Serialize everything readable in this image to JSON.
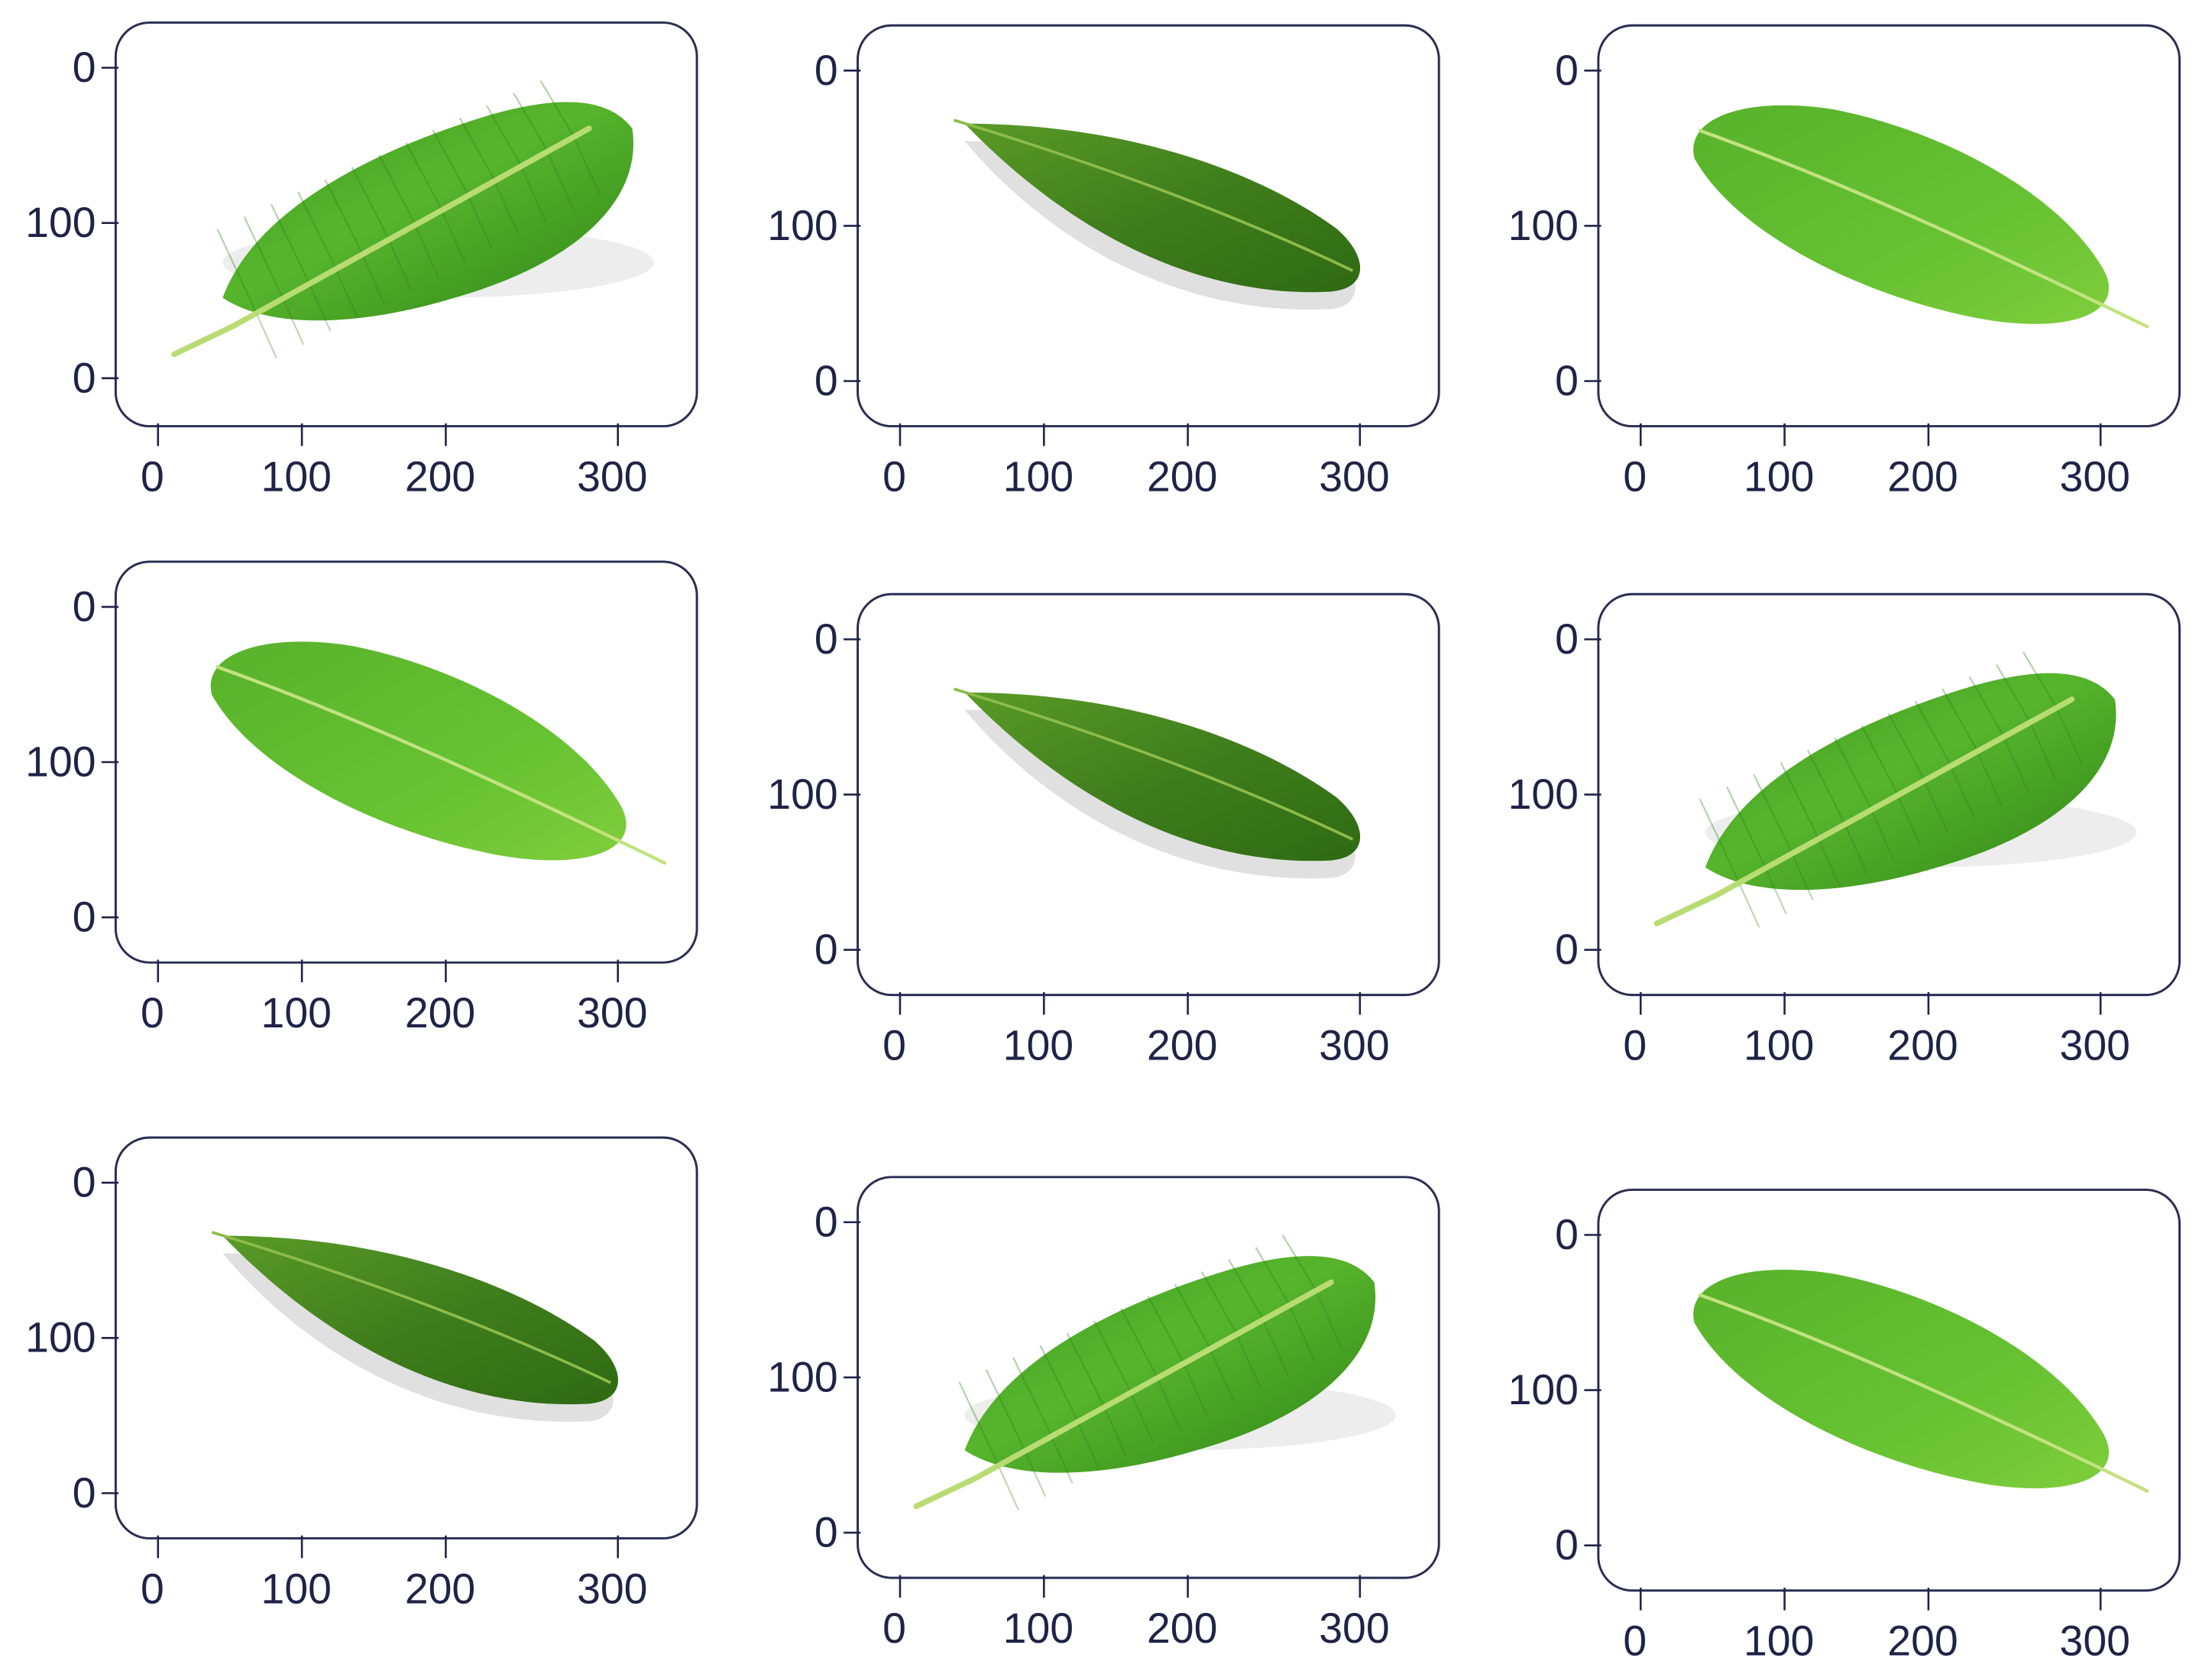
{
  "figure": {
    "ink_color": "#1f2347",
    "frame_color": "#2a2d52",
    "panels": [
      {
        "id": "r1c1",
        "leaf": "wide",
        "y_ticks": [
          "0",
          "100",
          "0"
        ],
        "x_ticks": [
          "0",
          "100",
          "200",
          "300"
        ]
      },
      {
        "id": "r1c2",
        "leaf": "dark",
        "y_ticks": [
          "0",
          "100",
          "0"
        ],
        "x_ticks": [
          "0",
          "100",
          "200",
          "300"
        ]
      },
      {
        "id": "r1c3",
        "leaf": "bright",
        "y_ticks": [
          "0",
          "100",
          "0"
        ],
        "x_ticks": [
          "0",
          "100",
          "200",
          "300"
        ]
      },
      {
        "id": "r2c1",
        "leaf": "bright",
        "y_ticks": [
          "0",
          "100",
          "0"
        ],
        "x_ticks": [
          "0",
          "100",
          "200",
          "300"
        ]
      },
      {
        "id": "r2c2",
        "leaf": "dark",
        "y_ticks": [
          "0",
          "100",
          "0"
        ],
        "x_ticks": [
          "0",
          "100",
          "200",
          "300"
        ]
      },
      {
        "id": "r2c3",
        "leaf": "wide",
        "y_ticks": [
          "0",
          "100",
          "0"
        ],
        "x_ticks": [
          "0",
          "100",
          "200",
          "300"
        ]
      },
      {
        "id": "r3c1",
        "leaf": "dark",
        "y_ticks": [
          "0",
          "100",
          "0"
        ],
        "x_ticks": [
          "0",
          "100",
          "200",
          "300"
        ]
      },
      {
        "id": "r3c2",
        "leaf": "wide",
        "y_ticks": [
          "0",
          "100",
          "0"
        ],
        "x_ticks": [
          "0",
          "100",
          "200",
          "300"
        ]
      },
      {
        "id": "r3c3",
        "leaf": "bright",
        "y_ticks": [
          "0",
          "100",
          "0"
        ],
        "x_ticks": [
          "0",
          "100",
          "200",
          "300"
        ]
      }
    ]
  }
}
